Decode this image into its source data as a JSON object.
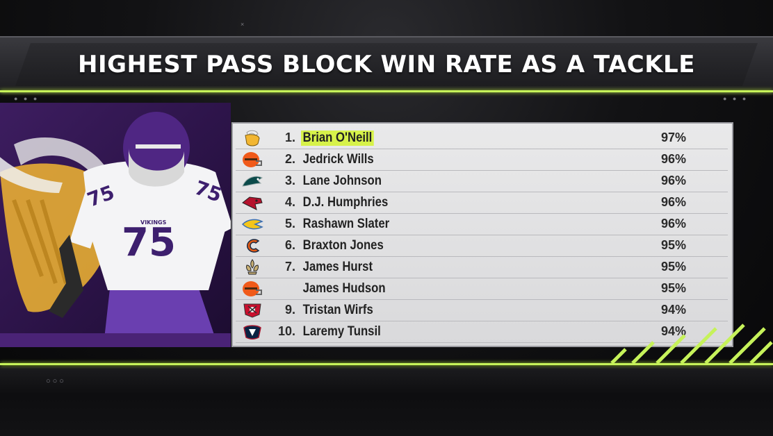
{
  "title": "HIGHEST PASS BLOCK WIN RATE AS A TACKLE",
  "colors": {
    "accent": "#c6f25a",
    "highlight": "#d7f24a",
    "vikings_purple": "#4f2683",
    "vikings_gold": "#ffc62f"
  },
  "hero": {
    "jersey_number": "75",
    "jersey_wordmark": "VIKINGS"
  },
  "rows": [
    {
      "rank": "1.",
      "name": "Brian O'Neill",
      "pct": "97%",
      "team_icon": "vikings-logo-icon",
      "highlight": true
    },
    {
      "rank": "2.",
      "name": "Jedrick Wills",
      "pct": "96%",
      "team_icon": "browns-helmet-icon"
    },
    {
      "rank": "3.",
      "name": "Lane Johnson",
      "pct": "96%",
      "team_icon": "eagles-logo-icon"
    },
    {
      "rank": "4.",
      "name": "D.J. Humphries",
      "pct": "96%",
      "team_icon": "cardinals-logo-icon"
    },
    {
      "rank": "5.",
      "name": "Rashawn Slater",
      "pct": "96%",
      "team_icon": "chargers-bolt-icon"
    },
    {
      "rank": "6.",
      "name": "Braxton Jones",
      "pct": "95%",
      "team_icon": "bears-logo-icon"
    },
    {
      "rank": "7.",
      "name": "James Hurst",
      "pct": "95%",
      "team_icon": "saints-fleur-icon"
    },
    {
      "rank": "",
      "name": "James Hudson",
      "pct": "95%",
      "team_icon": "browns-helmet-icon"
    },
    {
      "rank": "9.",
      "name": "Tristan Wirfs",
      "pct": "94%",
      "team_icon": "buccaneers-flag-icon"
    },
    {
      "rank": "10.",
      "name": "Laremy Tunsil",
      "pct": "94%",
      "team_icon": "texans-logo-icon"
    }
  ]
}
